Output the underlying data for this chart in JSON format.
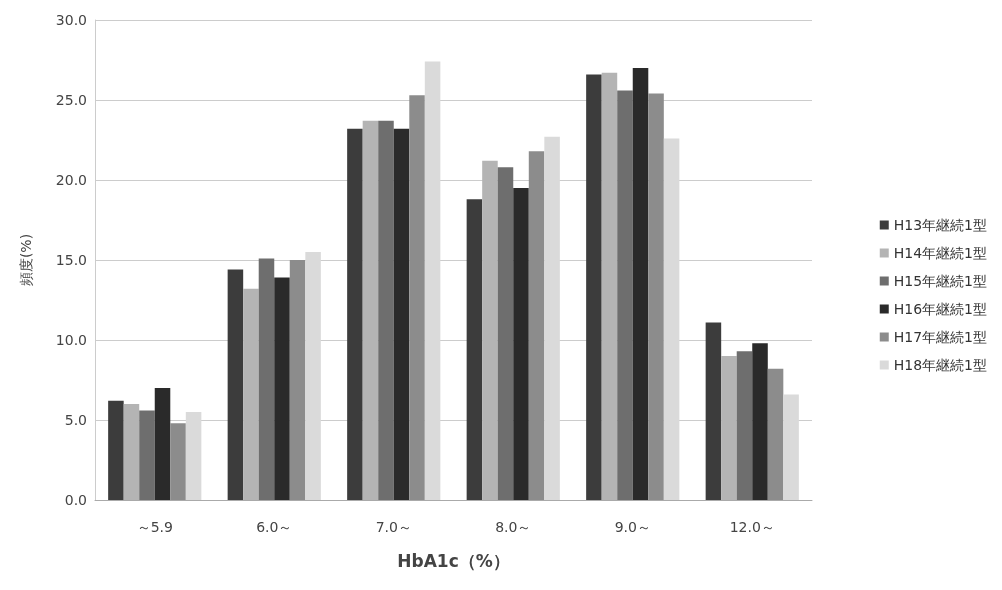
{
  "chart_data": {
    "type": "bar",
    "xlabel": "HbA1c（%）",
    "ylabel": "頻度(%)",
    "categories": [
      "～5.9",
      "6.0～",
      "7.0～",
      "8.0～",
      "9.0～",
      "12.0～"
    ],
    "series": [
      {
        "name": "H13年継続1型",
        "color": "#3c3c3c",
        "values": [
          6.2,
          14.4,
          23.2,
          18.8,
          26.6,
          11.1
        ]
      },
      {
        "name": "H14年継続1型",
        "color": "#b4b4b4",
        "values": [
          6.0,
          13.2,
          23.7,
          21.2,
          26.7,
          9.0
        ]
      },
      {
        "name": "H15年継続1型",
        "color": "#6e6e6e",
        "values": [
          5.6,
          15.1,
          23.7,
          20.8,
          25.6,
          9.3
        ]
      },
      {
        "name": "H16年継続1型",
        "color": "#2a2a2a",
        "values": [
          7.0,
          13.9,
          23.2,
          19.5,
          27.0,
          9.8
        ]
      },
      {
        "name": "H17年継続1型",
        "color": "#8c8c8c",
        "values": [
          4.8,
          15.0,
          25.3,
          21.8,
          25.4,
          8.2
        ]
      },
      {
        "name": "H18年継続1型",
        "color": "#dadada",
        "values": [
          5.5,
          15.5,
          27.4,
          22.7,
          22.6,
          6.6
        ]
      }
    ],
    "ylim": [
      0,
      30
    ],
    "yticks": [
      {
        "value": 0,
        "label": "0.0"
      },
      {
        "value": 5,
        "label": "5.0"
      },
      {
        "value": 10,
        "label": "10.0"
      },
      {
        "value": 15,
        "label": "15.0"
      },
      {
        "value": 20,
        "label": "20.0"
      },
      {
        "value": 25,
        "label": "25.0"
      },
      {
        "value": 30,
        "label": "30.0"
      }
    ],
    "grid": "y",
    "legend": "right"
  }
}
